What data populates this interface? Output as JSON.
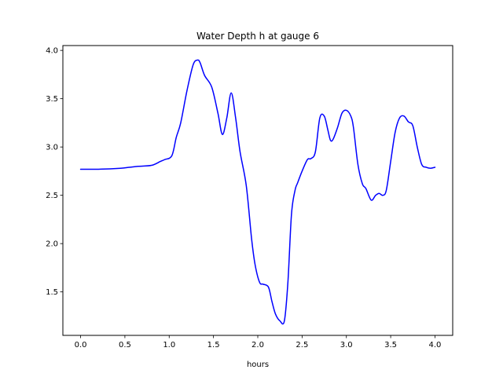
{
  "chart_data": {
    "type": "line",
    "title": "Water Depth h at gauge 6",
    "xlabel": "hours",
    "ylabel": "",
    "xlim": [
      -0.2,
      4.2
    ],
    "ylim": [
      1.05,
      4.05
    ],
    "xticks": [
      0.0,
      0.5,
      1.0,
      1.5,
      2.0,
      2.5,
      3.0,
      3.5,
      4.0
    ],
    "xtick_labels": [
      "0.0",
      "0.5",
      "1.0",
      "1.5",
      "2.0",
      "2.5",
      "3.0",
      "3.5",
      "4.0"
    ],
    "yticks": [
      1.5,
      2.0,
      2.5,
      3.0,
      3.5,
      4.0
    ],
    "ytick_labels": [
      "1.5",
      "2.0",
      "2.5",
      "3.0",
      "3.5",
      "4.0"
    ],
    "grid": false,
    "series": [
      {
        "color": "#0000ff",
        "x": [
          0.0,
          0.2,
          0.45,
          0.55,
          0.65,
          0.8,
          0.9,
          0.95,
          1.03,
          1.08,
          1.13,
          1.2,
          1.27,
          1.32,
          1.35,
          1.4,
          1.48,
          1.55,
          1.6,
          1.65,
          1.7,
          1.75,
          1.8,
          1.87,
          1.93,
          1.97,
          2.02,
          2.06,
          2.12,
          2.16,
          2.2,
          2.25,
          2.3,
          2.34,
          2.38,
          2.42,
          2.45,
          2.5,
          2.56,
          2.6,
          2.65,
          2.7,
          2.75,
          2.79,
          2.82,
          2.85,
          2.9,
          2.95,
          3.0,
          3.05,
          3.08,
          3.13,
          3.18,
          3.22,
          3.28,
          3.33,
          3.37,
          3.41,
          3.45,
          3.5,
          3.55,
          3.6,
          3.65,
          3.7,
          3.75,
          3.8,
          3.85,
          3.9,
          3.95,
          4.0
        ],
        "y": [
          2.77,
          2.77,
          2.78,
          2.79,
          2.8,
          2.81,
          2.85,
          2.87,
          2.91,
          3.1,
          3.25,
          3.58,
          3.85,
          3.9,
          3.87,
          3.74,
          3.62,
          3.35,
          3.13,
          3.3,
          3.56,
          3.3,
          2.95,
          2.6,
          2.05,
          1.78,
          1.6,
          1.58,
          1.55,
          1.4,
          1.27,
          1.2,
          1.2,
          1.6,
          2.3,
          2.55,
          2.63,
          2.75,
          2.87,
          2.88,
          2.95,
          3.3,
          3.32,
          3.18,
          3.07,
          3.08,
          3.2,
          3.35,
          3.38,
          3.32,
          3.2,
          2.82,
          2.62,
          2.57,
          2.45,
          2.5,
          2.52,
          2.5,
          2.55,
          2.85,
          3.15,
          3.3,
          3.32,
          3.26,
          3.22,
          3.0,
          2.82,
          2.79,
          2.78,
          2.79
        ]
      }
    ]
  }
}
